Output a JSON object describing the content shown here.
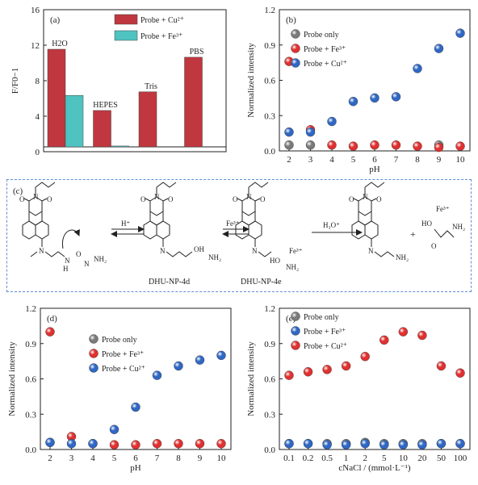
{
  "chart_data": [
    {
      "panel": "(a)",
      "type": "bar",
      "ylabel": "F/F0−1",
      "ylim": [
        0,
        16
      ],
      "yticks": [
        0,
        4,
        8,
        12,
        16
      ],
      "categories": [
        "H2O",
        "HEPES",
        "Tris",
        "PBS"
      ],
      "series": [
        {
          "name": "Probe + Cu²⁺",
          "values": [
            11.0,
            4.1,
            6.2,
            10.1
          ]
        },
        {
          "name": "Probe + Fe³⁺",
          "values": [
            5.8,
            0.1,
            0,
            0
          ]
        }
      ],
      "legend": "top-center",
      "colors": {
        "cu": "#c0373f",
        "fe": "#4ec3c0"
      }
    },
    {
      "panel": "(b)",
      "type": "scatter",
      "xlabel": "pH",
      "ylabel": "Normalized intensity",
      "ylim": [
        0,
        1.2
      ],
      "yticks": [
        0.0,
        0.3,
        0.6,
        0.9,
        1.2
      ],
      "x": [
        2,
        3,
        4,
        5,
        6,
        7,
        8,
        9,
        10
      ],
      "series": [
        {
          "name": "Probe only",
          "values": [
            0.05,
            0.05,
            null,
            null,
            null,
            null,
            null,
            0.05,
            null
          ]
        },
        {
          "name": "Probe + Fe³⁺",
          "values": [
            0.76,
            0.18,
            0.05,
            0.04,
            0.05,
            0.05,
            0.04,
            0.03,
            0.04
          ]
        },
        {
          "name": "Probe + Cu²⁺",
          "values": [
            0.16,
            0.16,
            0.25,
            0.42,
            0.45,
            0.46,
            0.7,
            0.87,
            1.0
          ]
        }
      ],
      "legend": "top-left",
      "colors": {
        "only": "#7a7a7a",
        "fe": "#e03030",
        "cu": "#2f67c4"
      }
    },
    {
      "panel": "(d)",
      "type": "scatter",
      "xlabel": "pH",
      "ylabel": "Normalized intensity",
      "ylim": [
        0,
        1.2
      ],
      "yticks": [
        0.0,
        0.3,
        0.6,
        0.9,
        1.2
      ],
      "x": [
        2,
        3,
        4,
        5,
        6,
        7,
        8,
        9,
        10
      ],
      "series": [
        {
          "name": "Probe only",
          "values": [
            0.06,
            null,
            null,
            null,
            null,
            null,
            null,
            null,
            null
          ]
        },
        {
          "name": "Probe + Fe³⁺",
          "values": [
            1.0,
            0.11,
            0.05,
            0.04,
            0.04,
            0.05,
            0.05,
            0.05,
            0.05
          ]
        },
        {
          "name": "Probe + Cu²⁺",
          "values": [
            0.06,
            0.05,
            0.05,
            0.17,
            0.36,
            0.63,
            0.71,
            0.76,
            0.8
          ]
        }
      ],
      "legend": "top-center",
      "colors": {
        "only": "#7a7a7a",
        "fe": "#e03030",
        "cu": "#2f67c4"
      }
    },
    {
      "panel": "(e)",
      "type": "scatter",
      "xlabel": "cNaCl / (mmol·L⁻¹)",
      "ylabel": "Normalized intensity",
      "ylim": [
        0,
        1.2
      ],
      "yticks": [
        0.0,
        0.3,
        0.6,
        0.9,
        1.2
      ],
      "categories": [
        "0.1",
        "0.2",
        "0.5",
        "1",
        "2",
        "5",
        "10",
        "20",
        "50",
        "100"
      ],
      "series": [
        {
          "name": "Probe only",
          "values": [
            0.05,
            0.05,
            0.05,
            0.05,
            0.06,
            0.05,
            0.05,
            0.05,
            0.05,
            0.05
          ]
        },
        {
          "name": "Probe + Fe³⁺",
          "values": [
            0.05,
            0.05,
            0.04,
            0.04,
            0.05,
            0.04,
            0.04,
            0.04,
            0.05,
            0.05
          ]
        },
        {
          "name": "Probe + Cu²⁺",
          "values": [
            0.63,
            0.66,
            0.68,
            0.71,
            0.79,
            0.93,
            1.0,
            0.97,
            0.71,
            0.65
          ]
        }
      ],
      "legend": "top-left",
      "colors": {
        "only": "#7a7a7a",
        "fe": "#2f67c4",
        "cu": "#e03030"
      }
    }
  ],
  "scheme": {
    "panel": "(c)",
    "arrow1_label": "H⁺",
    "arrow2_label": "Fe³⁺",
    "arrow3_label": "H₃O⁺",
    "plus": "+",
    "intermediate1": "DHU-NP-4d",
    "intermediate2": "DHU-NP-4e"
  }
}
